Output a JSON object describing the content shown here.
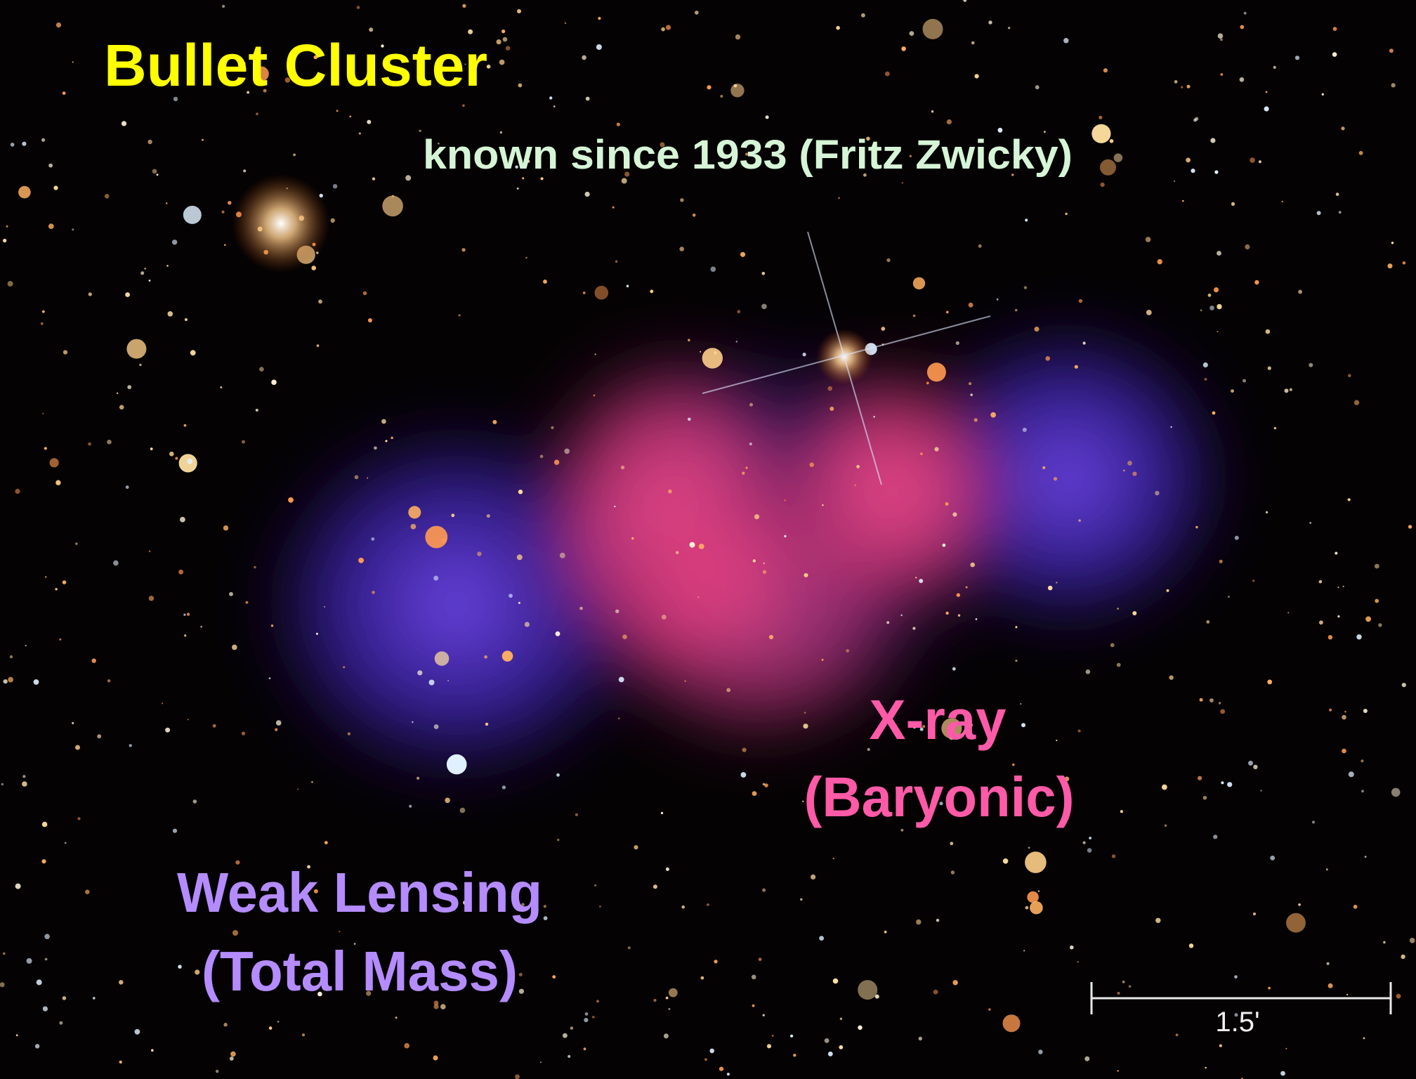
{
  "title": "Bullet Cluster",
  "subtitle": "known since 1933 (Fritz Zwicky)",
  "xray_label": {
    "line1": "X-ray",
    "line2": "(Baryonic)"
  },
  "lensing_label": {
    "line1": "Weak Lensing",
    "line2": "(Total Mass)"
  },
  "scale_bar": {
    "label": "1.5'"
  }
}
